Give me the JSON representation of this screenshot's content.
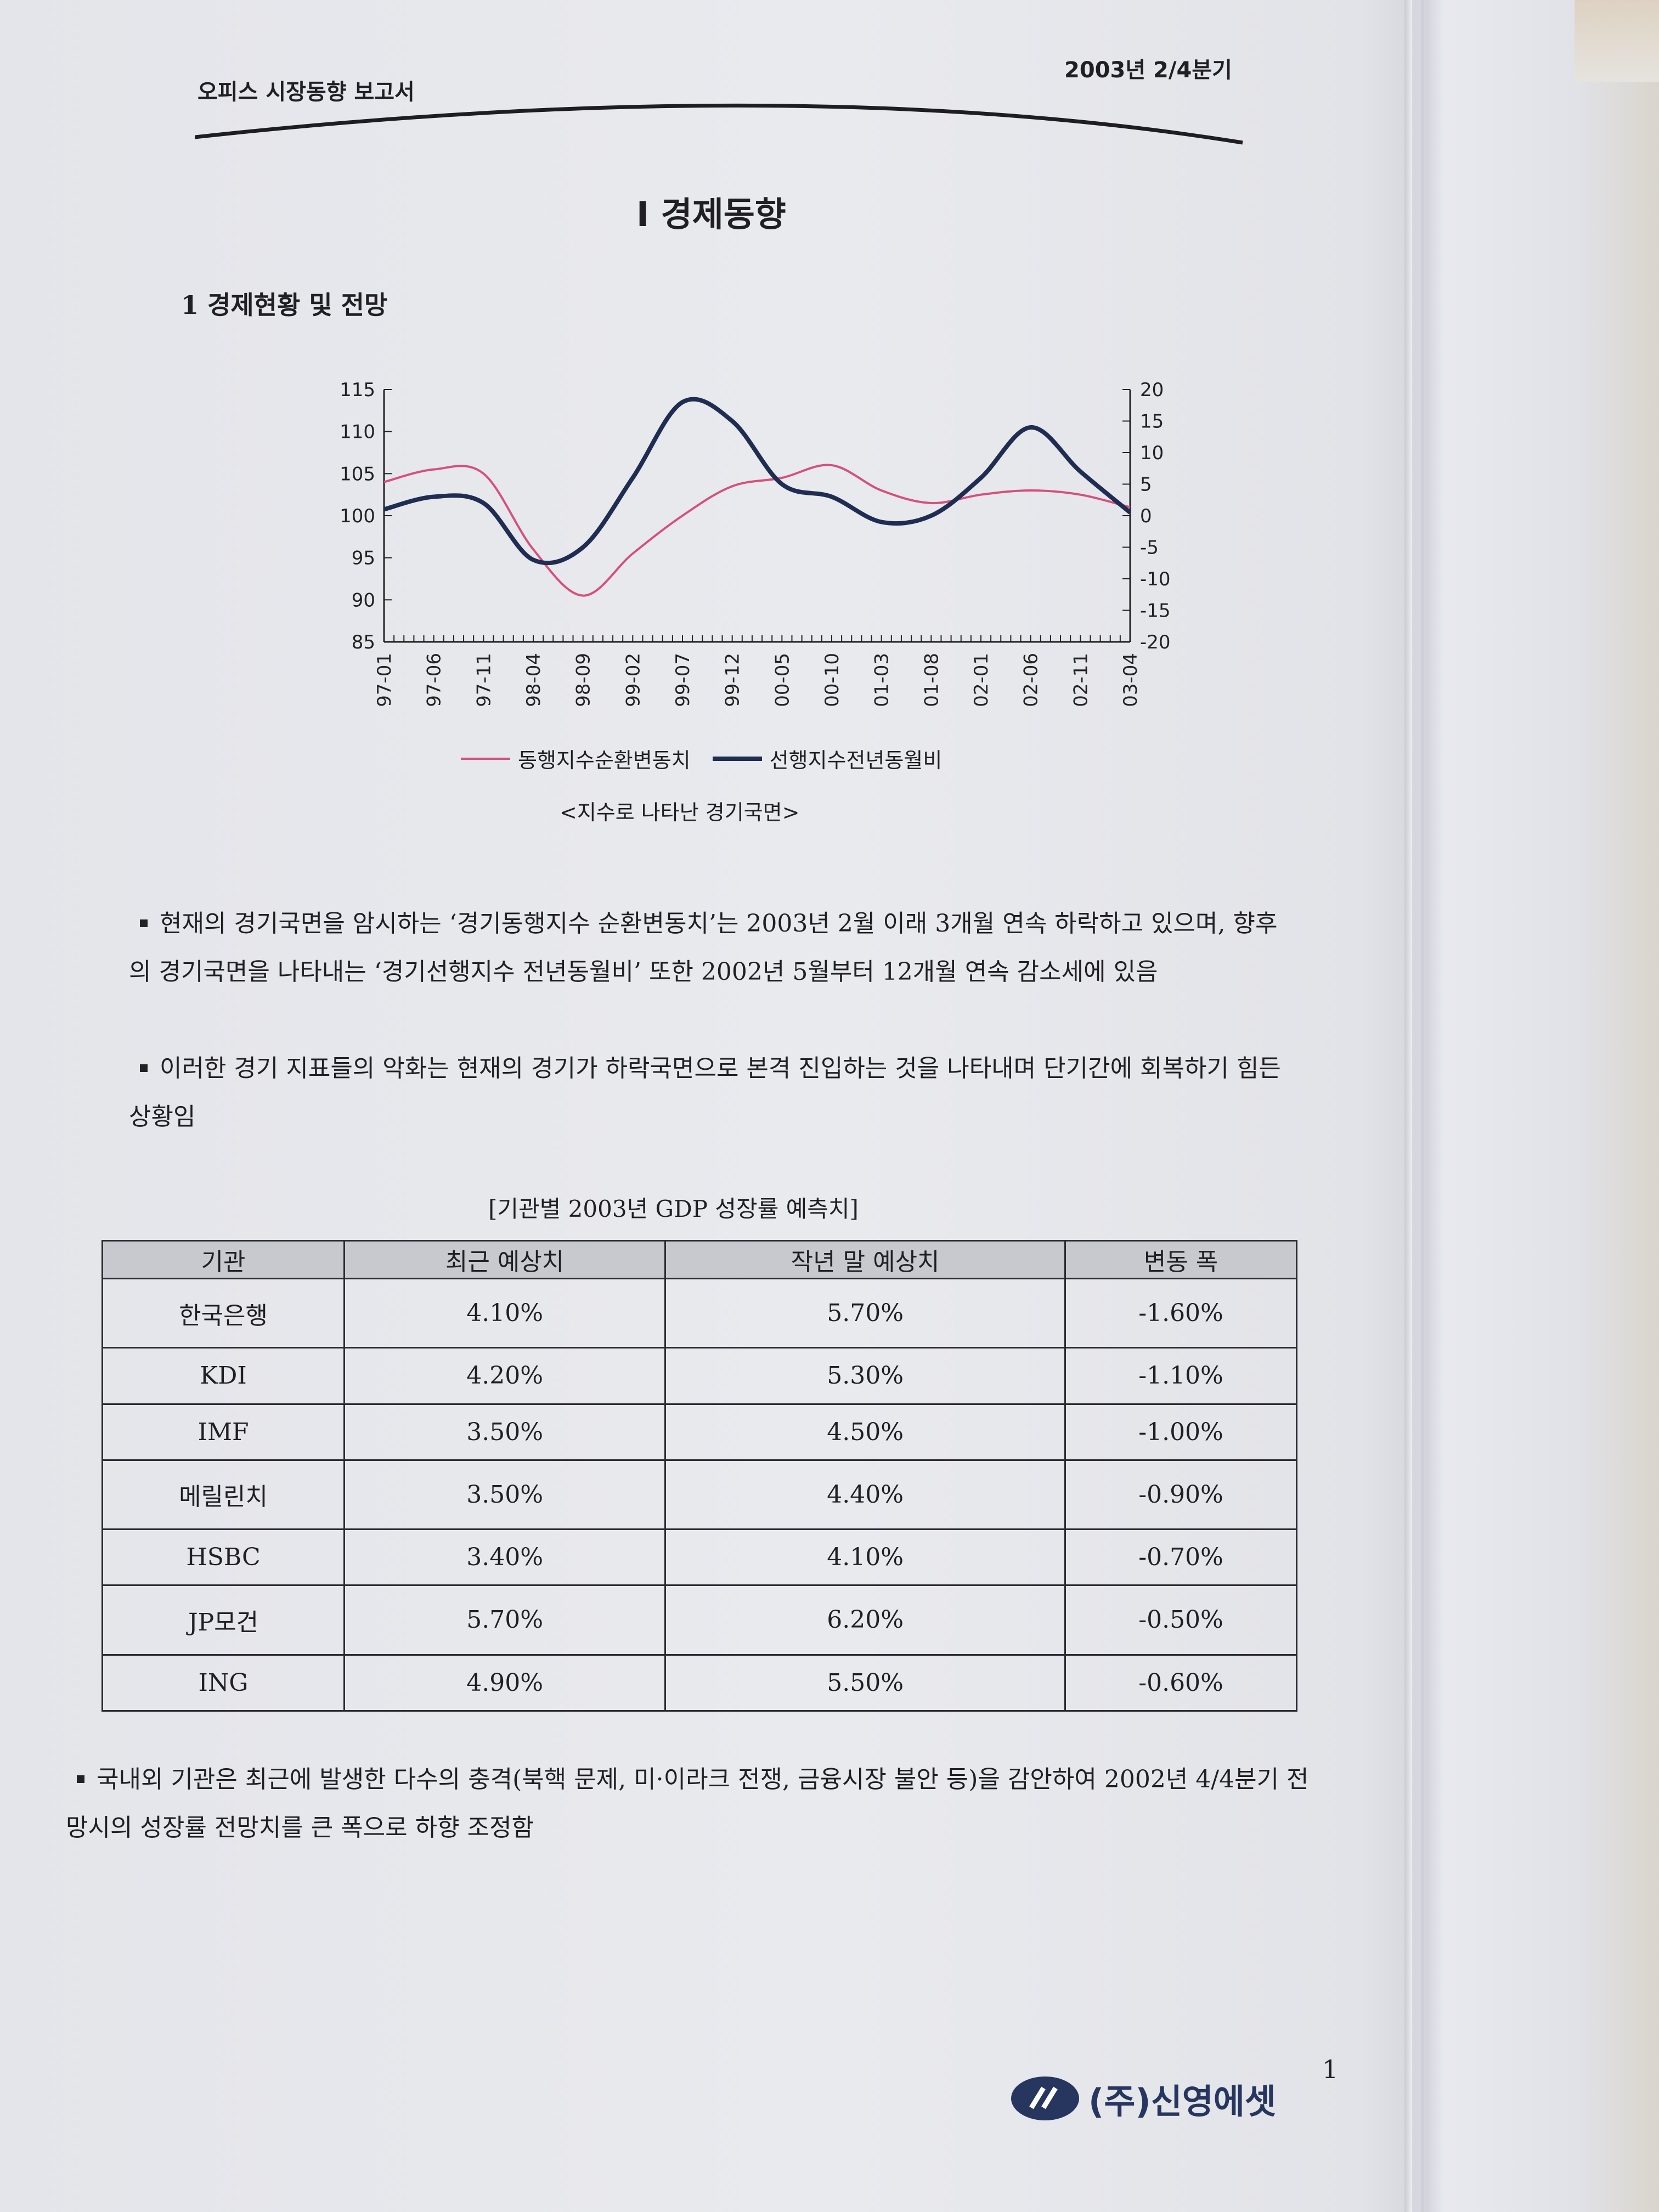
{
  "header": {
    "report_title": "오피스 시장동향 보고서",
    "period": "2003년  2/4분기"
  },
  "chapter_title": "I 경제동향",
  "section_title": "1 경제현황 및 전망",
  "chart_data": {
    "type": "line",
    "title": "",
    "x": [
      "97-01",
      "97-06",
      "97-11",
      "98-04",
      "98-09",
      "99-02",
      "99-07",
      "99-12",
      "00-05",
      "00-10",
      "01-03",
      "01-08",
      "02-01",
      "02-06",
      "02-11",
      "03-04"
    ],
    "series": [
      {
        "name": "동행지수순환변동치",
        "axis": "left",
        "color": "#d6507c",
        "values": [
          104,
          105.5,
          105,
          96,
          90.5,
          95.5,
          100,
          103.5,
          104.5,
          106,
          103,
          101.5,
          102.5,
          103,
          102.5,
          101
        ]
      },
      {
        "name": "선행지수전년동월비",
        "axis": "right",
        "color": "#1f2d52",
        "values": [
          1,
          3,
          2,
          -7,
          -5,
          6,
          18,
          15,
          5,
          3,
          -1,
          0,
          6,
          14,
          7,
          0.5
        ]
      }
    ],
    "yleft": {
      "lim": [
        85,
        115
      ],
      "ticks": [
        "115",
        "110",
        "105",
        "100",
        "95",
        "90",
        "85"
      ]
    },
    "yright": {
      "lim": [
        -20,
        20
      ],
      "ticks": [
        "20",
        "15",
        "10",
        "5",
        "0",
        "-5",
        "-10",
        "-15",
        "-20"
      ]
    },
    "caption": "<지수로 나타난 경기국면>"
  },
  "paragraphs": {
    "p1": "현재의 경기국면을 암시하는 ‘경기동행지수 순환변동치’는 2003년 2월 이래 3개월 연속 하락하고 있으며, 향후의 경기국면을 나타내는 ‘경기선행지수 전년동월비’ 또한 2002년 5월부터 12개월 연속 감소세에 있음",
    "p2": "이러한 경기 지표들의 악화는 현재의 경기가 하락국면으로 본격 진입하는 것을 나타내며 단기간에 회복하기 힘든 상황임",
    "p3": "국내외 기관은 최근에 발생한 다수의 충격(북핵 문제, 미·이라크 전쟁, 금융시장 불안 등)을 감안하여 2002년 4/4분기 전망시의 성장률 전망치를 큰 폭으로 하향 조정함"
  },
  "table": {
    "title": "[기관별 2003년 GDP 성장률 예측치]",
    "headers": [
      "기관",
      "최근 예상치",
      "작년 말 예상치",
      "변동 폭"
    ],
    "rows": [
      [
        "한국은행",
        "4.10%",
        "5.70%",
        "-1.60%"
      ],
      [
        "KDI",
        "4.20%",
        "5.30%",
        "-1.10%"
      ],
      [
        "IMF",
        "3.50%",
        "4.50%",
        "-1.00%"
      ],
      [
        "메릴린치",
        "3.50%",
        "4.40%",
        "-0.90%"
      ],
      [
        "HSBC",
        "3.40%",
        "4.10%",
        "-0.70%"
      ],
      [
        "JP모건",
        "5.70%",
        "6.20%",
        "-0.50%"
      ],
      [
        "ING",
        "4.90%",
        "5.50%",
        "-0.60%"
      ]
    ]
  },
  "footer": {
    "company": "(주)신영에셋",
    "page_number": "1"
  }
}
